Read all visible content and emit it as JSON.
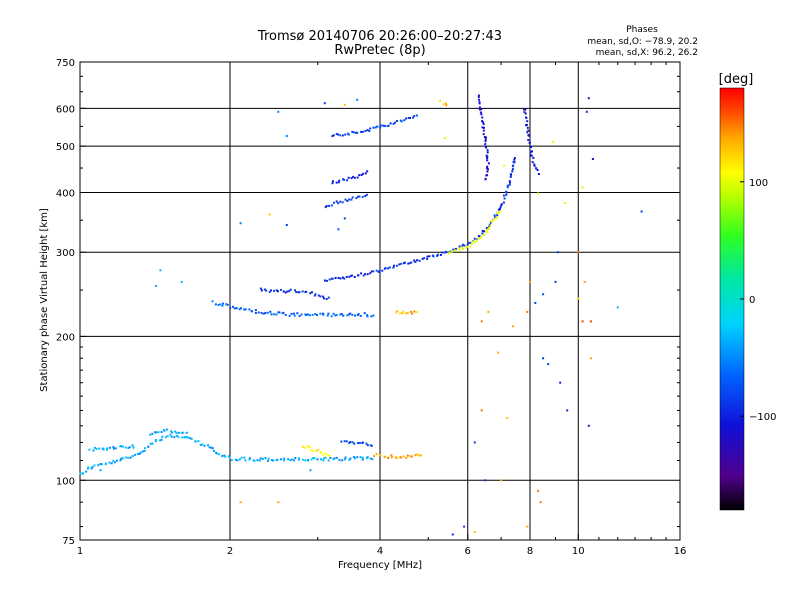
{
  "chart_data": {
    "type": "scatter",
    "title": "Tromsø 20140706 20:26:00–20:27:43",
    "subtitle": "RwPretec (8p)",
    "phases": {
      "heading": "Phases",
      "line_o": "mean, sd,O: −78.9, 20.2",
      "line_x": "mean, sd,X:  96.2, 26.2"
    },
    "xlabel": "Frequency [MHz]",
    "ylabel": "Stationary phase Virtual Height [km]",
    "xlim": [
      1,
      16
    ],
    "ylim": [
      75,
      750
    ],
    "x_ticks": [
      {
        "v": 1,
        "label": "1"
      },
      {
        "v": 2,
        "label": "2"
      },
      {
        "v": 4,
        "label": "4"
      },
      {
        "v": 6,
        "label": "6"
      },
      {
        "v": 8,
        "label": "8"
      },
      {
        "v": 10,
        "label": "10"
      },
      {
        "v": 16,
        "label": "16"
      }
    ],
    "y_ticks": [
      {
        "v": 75,
        "label": "75"
      },
      {
        "v": 100,
        "label": "100"
      },
      {
        "v": 200,
        "label": "200"
      },
      {
        "v": 300,
        "label": "300"
      },
      {
        "v": 400,
        "label": "400"
      },
      {
        "v": 500,
        "label": "500"
      },
      {
        "v": 600,
        "label": "600"
      },
      {
        "v": 750,
        "label": "750"
      }
    ],
    "grid_x": [
      2,
      4,
      6,
      8,
      10
    ],
    "grid_y": [
      100,
      200,
      300,
      400,
      500,
      600
    ],
    "colorbar": {
      "label": "[deg]",
      "range": [
        -180,
        180
      ],
      "ticks": [
        {
          "v": 100,
          "label": "100"
        },
        {
          "v": 0,
          "label": "0"
        },
        {
          "v": -100,
          "label": "−100"
        }
      ]
    },
    "series": [
      {
        "trace": [
          [
            1.0,
            103
          ],
          [
            1.06,
            107
          ],
          [
            1.12,
            108
          ],
          [
            1.2,
            110
          ],
          [
            1.3,
            113
          ],
          [
            1.4,
            120
          ],
          [
            1.5,
            124
          ],
          [
            1.6,
            123
          ],
          [
            1.7,
            121
          ],
          [
            1.8,
            118
          ],
          [
            1.9,
            113
          ],
          [
            2.0,
            111
          ],
          [
            2.2,
            110.5
          ],
          [
            2.5,
            110.5
          ],
          [
            3.0,
            110.5
          ],
          [
            3.5,
            111
          ],
          [
            3.9,
            111
          ]
        ],
        "phase": -45,
        "jitter": 1.2
      },
      {
        "trace": [
          [
            1.05,
            116
          ],
          [
            1.3,
            118
          ]
        ],
        "phase": -45,
        "jitter": 1.2
      },
      {
        "trace": [
          [
            1.38,
            125
          ],
          [
            1.5,
            127
          ],
          [
            1.65,
            125
          ]
        ],
        "phase": -40,
        "jitter": 1.0
      },
      {
        "trace": [
          [
            2.8,
            118
          ],
          [
            3.0,
            115
          ],
          [
            3.2,
            112
          ]
        ],
        "phase": 110,
        "jitter": 1.0
      },
      {
        "trace": [
          [
            3.9,
            113
          ],
          [
            4.2,
            112
          ],
          [
            4.5,
            112
          ],
          [
            4.9,
            113
          ]
        ],
        "phase": 135,
        "jitter": 1.0
      },
      {
        "trace": [
          [
            3.35,
            120
          ],
          [
            3.6,
            120
          ],
          [
            3.9,
            118
          ]
        ],
        "phase": -85,
        "jitter": 1.0
      },
      {
        "trace": [
          [
            1.85,
            235
          ],
          [
            2.2,
            226
          ],
          [
            2.6,
            222
          ],
          [
            3.0,
            222
          ],
          [
            3.5,
            222
          ],
          [
            3.9,
            222
          ]
        ],
        "phase": -70,
        "jitter": 1.2
      },
      {
        "trace": [
          [
            2.3,
            250
          ],
          [
            2.8,
            248
          ],
          [
            3.2,
            240
          ]
        ],
        "phase": -95,
        "jitter": 1.2
      },
      {
        "trace": [
          [
            3.1,
            262
          ],
          [
            3.6,
            268
          ],
          [
            4.0,
            275
          ],
          [
            4.5,
            285
          ],
          [
            5.0,
            292
          ],
          [
            5.6,
            302
          ],
          [
            6.2,
            318
          ],
          [
            6.6,
            338
          ],
          [
            7.0,
            372
          ],
          [
            7.3,
            425
          ],
          [
            7.5,
            480
          ]
        ],
        "phase": -95,
        "jitter": 1.0
      },
      {
        "trace": [
          [
            5.5,
            300
          ],
          [
            6.0,
            308
          ],
          [
            6.5,
            328
          ],
          [
            7.0,
            370
          ]
        ],
        "phase": 95,
        "jitter": 1.0
      },
      {
        "trace": [
          [
            6.3,
            640
          ],
          [
            6.4,
            580
          ],
          [
            6.5,
            520
          ],
          [
            6.6,
            460
          ],
          [
            6.5,
            420
          ]
        ],
        "phase": -115,
        "jitter": 1.0
      },
      {
        "trace": [
          [
            7.8,
            600
          ],
          [
            7.9,
            540
          ],
          [
            8.1,
            470
          ],
          [
            8.4,
            430
          ]
        ],
        "phase": -110,
        "jitter": 1.0
      },
      {
        "trace": [
          [
            3.2,
            525
          ],
          [
            3.8,
            540
          ],
          [
            4.3,
            560
          ],
          [
            4.8,
            580
          ]
        ],
        "phase": -85,
        "jitter": 1.0
      },
      {
        "trace": [
          [
            3.1,
            375
          ],
          [
            3.4,
            385
          ],
          [
            3.8,
            395
          ]
        ],
        "phase": -90,
        "jitter": 1.0
      },
      {
        "trace": [
          [
            3.2,
            420
          ],
          [
            3.6,
            430
          ],
          [
            3.8,
            445
          ]
        ],
        "phase": -100,
        "jitter": 1.0
      },
      {
        "trace": [
          [
            5.3,
            620
          ],
          [
            5.5,
            605
          ]
        ],
        "phase": 130,
        "jitter": 1.0
      },
      {
        "trace": [
          [
            4.3,
            225
          ],
          [
            4.8,
            224
          ]
        ],
        "phase": 135,
        "jitter": 1.0
      }
    ],
    "scatter": [
      [
        2.5,
        590,
        -60
      ],
      [
        2.6,
        525,
        -60
      ],
      [
        2.4,
        360,
        130
      ],
      [
        2.1,
        345,
        -60
      ],
      [
        2.6,
        342,
        -90
      ],
      [
        3.4,
        353,
        -90
      ],
      [
        3.3,
        335,
        -80
      ],
      [
        5.4,
        520,
        95
      ],
      [
        7.1,
        455,
        100
      ],
      [
        8.3,
        398,
        100
      ],
      [
        8.9,
        510,
        90
      ],
      [
        9.4,
        380,
        95
      ],
      [
        10.5,
        630,
        -110
      ],
      [
        10.4,
        590,
        -100
      ],
      [
        10.7,
        470,
        -120
      ],
      [
        10.2,
        410,
        120
      ],
      [
        10.0,
        300,
        150
      ],
      [
        10.3,
        260,
        140
      ],
      [
        10.0,
        240,
        120
      ],
      [
        10.2,
        215,
        160
      ],
      [
        10.6,
        215,
        160
      ],
      [
        13.4,
        365,
        -90
      ],
      [
        12.0,
        230,
        -40
      ],
      [
        9.1,
        300,
        -90
      ],
      [
        9.0,
        260,
        -90
      ],
      [
        8.5,
        245,
        -80
      ],
      [
        8.2,
        235,
        -90
      ],
      [
        7.9,
        225,
        150
      ],
      [
        7.4,
        210,
        140
      ],
      [
        6.6,
        225,
        140
      ],
      [
        6.4,
        215,
        150
      ],
      [
        6.9,
        185,
        140
      ],
      [
        6.4,
        140,
        150
      ],
      [
        6.2,
        120,
        -90
      ],
      [
        6.5,
        100,
        -90
      ],
      [
        8.4,
        90,
        150
      ],
      [
        8.3,
        95,
        150
      ],
      [
        7.9,
        80,
        140
      ],
      [
        5.9,
        80,
        -90
      ],
      [
        6.2,
        78,
        130
      ],
      [
        5.6,
        77,
        -95
      ],
      [
        8.0,
        260,
        140
      ],
      [
        8.5,
        180,
        -90
      ],
      [
        8.7,
        175,
        -90
      ],
      [
        10.6,
        180,
        140
      ],
      [
        7.0,
        100,
        140
      ],
      [
        7.2,
        135,
        130
      ],
      [
        2.1,
        90,
        140
      ],
      [
        2.5,
        90,
        140
      ],
      [
        2.9,
        105,
        -45
      ],
      [
        1.1,
        105,
        -45
      ],
      [
        1.45,
        275,
        -40
      ],
      [
        1.42,
        255,
        -45
      ],
      [
        1.6,
        260,
        -40
      ],
      [
        9.2,
        160,
        -100
      ],
      [
        9.5,
        140,
        -100
      ],
      [
        10.5,
        130,
        -100
      ],
      [
        3.6,
        625,
        -60
      ],
      [
        3.4,
        610,
        130
      ],
      [
        3.1,
        615,
        -90
      ]
    ]
  }
}
